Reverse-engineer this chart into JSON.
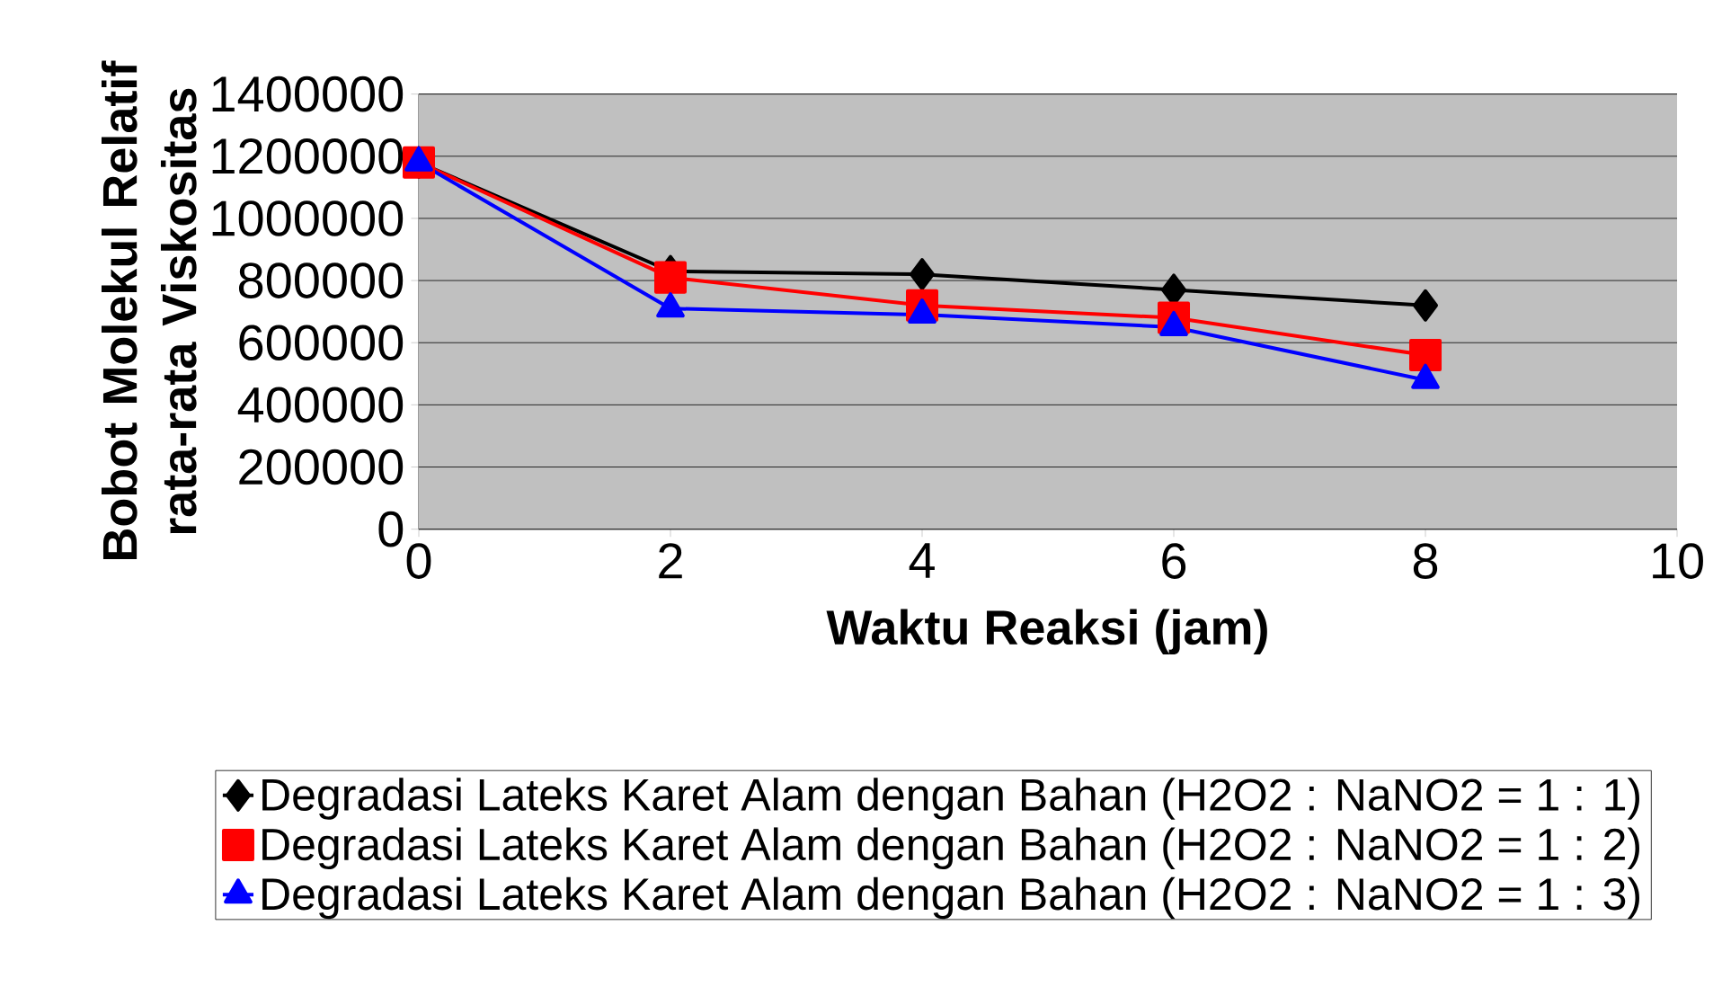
{
  "chart_data": {
    "type": "line",
    "xlabel": "Waktu Reaksi (jam)",
    "ylabel": "Bobot Molekul Relatif rata-rata Viskositas",
    "x": [
      0,
      2,
      4,
      6,
      8
    ],
    "series": [
      {
        "name": "Degradasi Lateks Karet Alam dengan Bahan (H2O2 : NaNO2 = 1 : 1)",
        "color": "#000000",
        "marker": "diamond",
        "values": [
          1180000,
          830000,
          820000,
          770000,
          720000
        ]
      },
      {
        "name": "Degradasi Lateks Karet Alam dengan Bahan (H2O2 : NaNO2 = 1 : 2)",
        "color": "#ff0000",
        "marker": "square",
        "values": [
          1180000,
          810000,
          720000,
          680000,
          560000
        ]
      },
      {
        "name": "Degradasi Lateks Karet Alam dengan Bahan (H2O2 : NaNO2 = 1 : 3)",
        "color": "#0000ff",
        "marker": "triangle",
        "values": [
          1180000,
          710000,
          690000,
          650000,
          480000
        ]
      }
    ],
    "xlim": [
      0,
      10
    ],
    "xticks": [
      0,
      2,
      4,
      6,
      8,
      10
    ],
    "ylim": [
      0,
      1400000
    ],
    "yticks": [
      0,
      200000,
      400000,
      600000,
      800000,
      1000000,
      1200000,
      1400000
    ],
    "grid": "y",
    "legend": "bottom",
    "line_style": "solid"
  }
}
